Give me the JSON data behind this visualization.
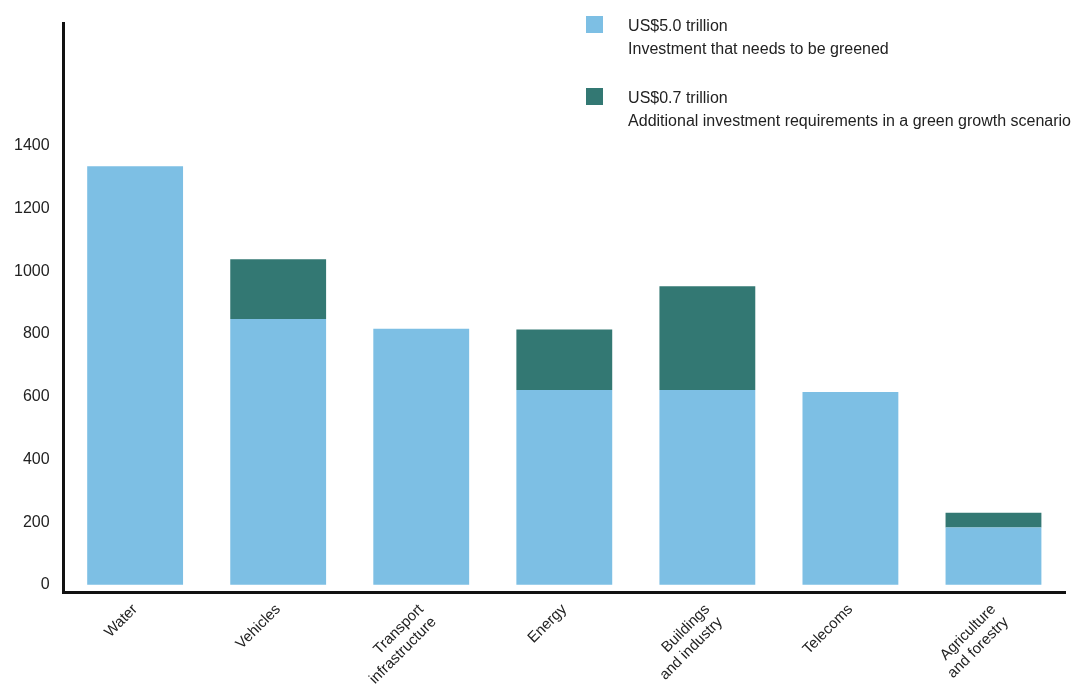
{
  "chart_data": {
    "type": "bar",
    "stacked": true,
    "categories": [
      "Water",
      "Vehicles",
      "Transport\ninfrastructure",
      "Energy",
      "Buildings\nand industry",
      "Telecoms",
      "Agriculture\nand forestry"
    ],
    "series": [
      {
        "name": "US$5.0 trillion\nInvestment that needs to be greened",
        "color": "#7dbfe4",
        "values": [
          1335,
          848,
          817,
          621,
          621,
          615,
          183
        ]
      },
      {
        "name": "US$0.7 trillion\nAdditional investment requirements in a green growth scenario",
        "color": "#337873",
        "values": [
          null,
          190,
          null,
          193,
          331,
          null,
          47
        ]
      }
    ],
    "ylim": [
      -25,
      1790
    ],
    "yticks": [
      0,
      200,
      400,
      600,
      800,
      1000,
      1200,
      1400
    ],
    "grid": false,
    "legend": "top right"
  }
}
